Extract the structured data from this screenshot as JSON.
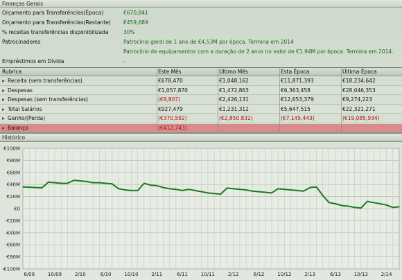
{
  "general": {
    "title": "Finanças Gerais",
    "rows": [
      {
        "label": "Orçamento para Transferências(Época)",
        "value": "€670,841"
      },
      {
        "label": "Orçamento para Transferências(Restante)",
        "value": "€459,689"
      },
      {
        "label": "% receitas transferências disponibilizada",
        "value": "30%"
      },
      {
        "label": "Patrocinadores",
        "value": "Patrocínio geral de 1 ano de €4.53M por época. Termina em 2014"
      },
      {
        "label": "",
        "value": "Patrocínio de equipamentos com a duração de 2 anos no valor de €1.94M por época. Termina em 2014."
      },
      {
        "label": "Empréstimos em Dívida",
        "value": "-"
      }
    ]
  },
  "table": {
    "headers": [
      "Rubrica",
      "Este Mês",
      "Último Mês",
      "Esta Época",
      "Última Época"
    ],
    "rows": [
      {
        "label": "Receita (sem transferências)",
        "cells": [
          "€678,470",
          "€1,048,162",
          "€11,871,393",
          "€18,234,642"
        ],
        "negative": [
          false,
          false,
          false,
          false
        ]
      },
      {
        "label": "Despesas",
        "cells": [
          "€1,057,870",
          "€1,472,863",
          "€6,363,458",
          "€28,046,353"
        ],
        "negative": [
          false,
          false,
          false,
          false
        ]
      },
      {
        "label": "Despesas (sem transferências)",
        "cells": [
          "(€8,807)",
          "€2,426,131",
          "€12,653,379",
          "€9,274,223"
        ],
        "negative": [
          true,
          false,
          false,
          false
        ]
      },
      {
        "label": "Total Salários",
        "cells": [
          "€927,479",
          "€1,231,312",
          "€5,647,515",
          "€22,321,271"
        ],
        "negative": [
          false,
          false,
          false,
          false
        ]
      },
      {
        "label": "Ganho/(Perda)",
        "cells": [
          "(€370,592)",
          "(€2,850,832)",
          "(€7,145,443)",
          "(€19,085,934)"
        ],
        "negative": [
          true,
          true,
          true,
          true
        ]
      },
      {
        "label": "Balanço",
        "cells": [
          "(€412,743)",
          "",
          "",
          ""
        ],
        "negative": [
          true,
          false,
          false,
          false
        ]
      }
    ]
  },
  "history": {
    "title": "Histórico"
  },
  "chart_data": {
    "type": "line",
    "title": "",
    "ylim": [
      -100,
      100
    ],
    "y_ticks": [
      "€100M",
      "€80M",
      "€60M",
      "€40M",
      "€20M",
      "€0",
      "-€20M",
      "-€40M",
      "-€60M",
      "-€80M",
      "-€100M"
    ],
    "x_ticks": [
      "6/09",
      "10/09",
      "2/10",
      "6/10",
      "10/10",
      "2/11",
      "6/11",
      "10/11",
      "2/12",
      "6/12",
      "10/12",
      "2/13",
      "6/13",
      "10/13",
      "2/14"
    ],
    "x_tick_index": [
      1,
      5,
      9,
      13,
      17,
      21,
      25,
      29,
      33,
      37,
      41,
      45,
      49,
      53,
      57
    ],
    "line_color": "#1a7a1a",
    "series": [
      {
        "values": [
          36,
          35.5,
          35,
          34.5,
          44,
          43,
          42,
          42,
          47,
          46,
          45,
          43,
          43,
          42,
          41,
          33,
          31,
          30,
          30,
          42,
          39,
          38,
          35,
          33,
          32,
          30,
          32,
          30,
          28,
          26,
          25,
          24,
          34,
          33,
          32,
          31,
          29,
          28,
          27,
          26,
          33,
          32,
          31,
          30,
          29,
          35,
          36,
          22,
          10,
          8,
          5,
          4,
          2,
          1,
          12,
          10,
          8,
          6,
          2,
          3
        ]
      }
    ]
  }
}
